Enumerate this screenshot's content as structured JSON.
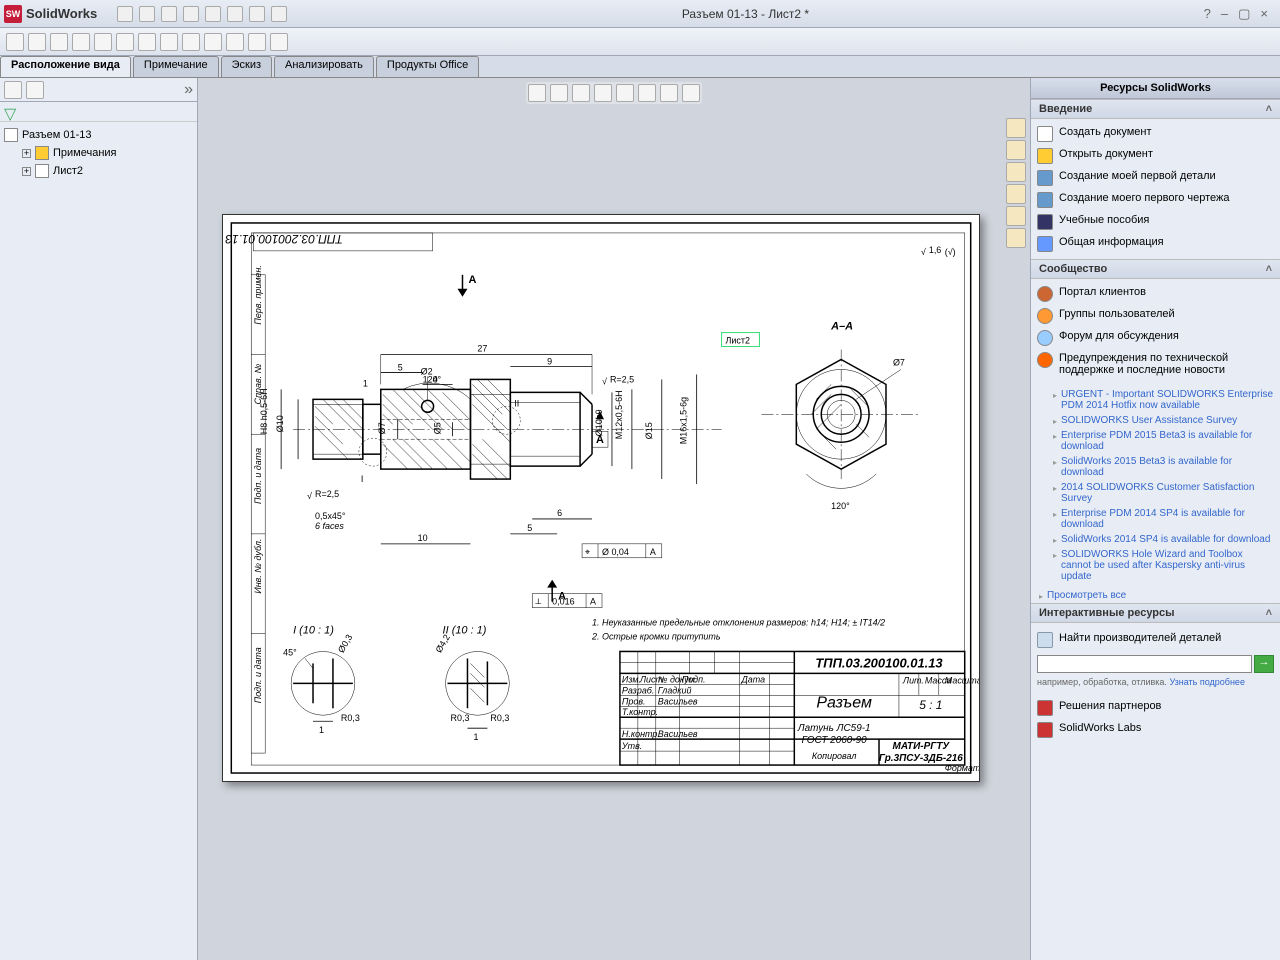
{
  "app": {
    "name": "SolidWorks",
    "doc_title": "Разъем 01-13 - Лист2 *"
  },
  "tabs": [
    "Расположение вида",
    "Примечание",
    "Эскиз",
    "Анализировать",
    "Продукты Office"
  ],
  "active_tab": 0,
  "tree": {
    "root": "Разъем 01-13",
    "children": [
      {
        "label": "Примечания",
        "icon": "ann"
      },
      {
        "label": "Лист2",
        "icon": "sheet"
      }
    ]
  },
  "taskpane": {
    "title": "Ресурсы SolidWorks",
    "sections": {
      "intro": {
        "title": "Введение",
        "items": [
          {
            "label": "Создать документ",
            "color": "#fff"
          },
          {
            "label": "Открыть документ",
            "color": "#ffcc33"
          },
          {
            "label": "Создание моей первой детали",
            "color": "#6699cc"
          },
          {
            "label": "Создание моего первого чертежа",
            "color": "#6699cc"
          },
          {
            "label": "Учебные пособия",
            "color": "#333366"
          },
          {
            "label": "Общая информация",
            "color": "#6699ff"
          }
        ]
      },
      "community": {
        "title": "Сообщество",
        "items": [
          {
            "label": "Портал клиентов",
            "color": "#cc6633"
          },
          {
            "label": "Группы пользователей",
            "color": "#ff9933"
          },
          {
            "label": "Форум для обсуждения",
            "color": "#99ccff"
          },
          {
            "label": "Предупреждения по технической поддержке и последние новости",
            "color": "#ff6600"
          }
        ],
        "news": [
          "URGENT - Important SOLIDWORKS Enterprise PDM 2014 Hotfix now available",
          "SOLIDWORKS User Assistance Survey",
          "Enterprise PDM 2015 Beta3 is available for download",
          "SolidWorks 2015 Beta3 is available for download",
          "2014 SOLIDWORKS Customer Satisfaction Survey",
          "Enterprise PDM 2014 SP4 is available for download",
          "SolidWorks 2014 SP4 is available for download",
          "SOLIDWORKS Hole Wizard and Toolbox cannot be used after Kaspersky anti-virus update"
        ],
        "view_all": "Просмотреть все"
      },
      "interactive": {
        "title": "Интерактивные ресурсы",
        "search_label": "Найти производителей деталей",
        "hint": "например, обработка, отливка.",
        "hint_link": "Узнать подробнее",
        "links": [
          {
            "label": "Решения партнеров",
            "color": "#cc3333"
          },
          {
            "label": "SolidWorks Labs",
            "color": "#cc3333"
          }
        ]
      }
    }
  },
  "drawing": {
    "sheet_label": "Лист2",
    "part_number": "ТПП.03.200100.01.13",
    "part_number_upside": "ТПП.03.200100.01.13",
    "title": "Разъем",
    "scale": "5 : 1",
    "material_line1": "Латунь ЛС59-1",
    "material_line2": "ГОСТ 2060-90",
    "org": "МАТИ-РГТУ",
    "group": "Гр.3ПСУ-3ДБ-216",
    "surface_default": "1,6",
    "surname_design": "Васильев",
    "surname_check": "Васильев",
    "surface_type": "Гладкий",
    "note1": "1. Неуказанные предельные отклонения размеров: h14; H14; ± IT14/2",
    "note2": "2. Острые кромки притупить",
    "section_label": "А–А",
    "section_mark": "А",
    "detail1": "I  (10 : 1)",
    "detail2": "II  (10 : 1)",
    "dims": {
      "len_total": "27",
      "len_9": "9",
      "len_5a": "5",
      "len_4": "4",
      "len_1": "1",
      "len_10": "10",
      "len_5b": "5",
      "len_6": "6",
      "d2": "Ø2",
      "d7": "Ø7",
      "d5": "Ø5",
      "d10h9": "Ø10h9",
      "d15": "Ø15",
      "d42": "Ø4,2",
      "d10": "Ø10",
      "d03": "Ø0,3",
      "m12": "M12x0,5-6H",
      "m16": "M16x1,5-6g",
      "h8": "H8 h0,5-6H",
      "chamfer": "0,5x45°",
      "chamfer_below": "6 faces",
      "ang120": "120°",
      "ang45": "45°",
      "r025": "R=2,5",
      "r03a": "R0,3",
      "r03b": "R0,3",
      "r03c": "R0,3",
      "d1a": "1",
      "d1b": "1",
      "gd1": "⌖ Ø 0,04 А",
      "gd2": "�ား 0,016 А"
    }
  }
}
